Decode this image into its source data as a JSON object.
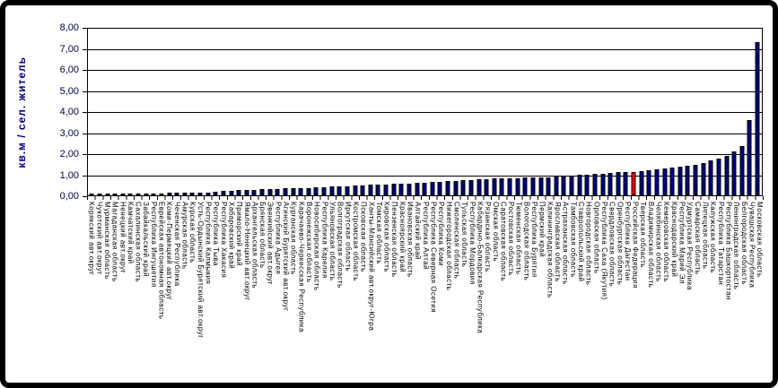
{
  "chart_data": {
    "type": "bar",
    "title": "",
    "xlabel": "",
    "ylabel": "кв.м / сел. житель",
    "ylim": [
      0,
      8
    ],
    "ytick_step": 1,
    "ytick_labels": [
      "0,00",
      "1,00",
      "2,00",
      "3,00",
      "4,00",
      "5,00",
      "6,00",
      "7,00",
      "8,00"
    ],
    "grid": true,
    "legend": null,
    "bar_color": "#000080",
    "bar_border_color": "#000000",
    "highlight_color": "#FF0000",
    "highlight_category": "Российская Федерация",
    "categories": [
      "Корякский авт.округ",
      "Чукотский авт.округ",
      "Мурманская область",
      "Магаданская область",
      "Ненецкий авт.округ",
      "Камчатский край",
      "Сахалинская область",
      "Забайкальский край",
      "Республика Ингушетия",
      "Еврейская автономная область",
      "Коми-Пермяцкий авт.округ",
      "Чеченская Республика",
      "Амурская область",
      "Курская область",
      "Усть-Ордынский Бурятский авт.округ",
      "Республика Калмыкия",
      "Республика Тыва",
      "Республика Хакасия",
      "Хабаровский край",
      "Приморский край",
      "Ямало-Ненецкий авт.округ",
      "Архангельская область",
      "Брянская область",
      "Эвенкийский авт.округ",
      "Республика Адыгея",
      "Агинский Бурятский авт.округ",
      "Курганская область",
      "Карачаево-Черкесская Республика",
      "Воронежская область",
      "Новосибирская область",
      "Республика Карелия",
      "Ульяновская область",
      "Волгоградская область",
      "Иркутская область",
      "Костромская область",
      "Псковская область",
      "Ханты-Мансийский авт.округ-Югра",
      "Томская область",
      "Кировская область",
      "Пензенская область",
      "Красноярский край",
      "Ивановская область",
      "Алтайский край",
      "Республика Алтай",
      "Республика Северная Осетия",
      "Республика Коми",
      "Нижегородская область",
      "Смоленская область",
      "Тульская область",
      "Республика Мордовия",
      "Кабардино-Балкарская Республика",
      "Рязанская область",
      "Омская область",
      "Саратовская область",
      "Ростовская область",
      "Тюменская область",
      "Вологодская область",
      "Республика Бурятия",
      "Пермский край",
      "Калининградская область",
      "Ярославская область",
      "Астраханская область",
      "Тамбовская область",
      "Ставропольский край",
      "Новгородская область",
      "Орловская область",
      "Республика Саха (Якутия)",
      "Свердловская область",
      "Оренбургская область",
      "Республика Дагестан",
      "Российская Федерация",
      "Тверская область",
      "Владимирская область",
      "Челябинская область",
      "Кемеровская область",
      "Краснодарский край",
      "Республика Марий Эл",
      "Удмуртская Республика",
      "Самарская область",
      "Липецкая область",
      "Калужская область",
      "Республика Татарстан",
      "Республика Башкортостан",
      "Ленинградская область",
      "Белгородская область",
      "Чувашская Республика",
      "Московская область"
    ],
    "values": [
      0.01,
      0.02,
      0.03,
      0.04,
      0.06,
      0.07,
      0.08,
      0.09,
      0.1,
      0.1,
      0.11,
      0.12,
      0.12,
      0.13,
      0.14,
      0.15,
      0.17,
      0.2,
      0.22,
      0.24,
      0.26,
      0.28,
      0.29,
      0.3,
      0.31,
      0.33,
      0.34,
      0.35,
      0.36,
      0.38,
      0.4,
      0.42,
      0.44,
      0.45,
      0.47,
      0.48,
      0.5,
      0.52,
      0.53,
      0.55,
      0.57,
      0.58,
      0.6,
      0.62,
      0.64,
      0.66,
      0.68,
      0.7,
      0.73,
      0.75,
      0.77,
      0.78,
      0.8,
      0.8,
      0.82,
      0.83,
      0.84,
      0.85,
      0.86,
      0.88,
      0.9,
      0.92,
      0.95,
      0.97,
      1.0,
      1.02,
      1.05,
      1.07,
      1.1,
      1.1,
      1.12,
      1.15,
      1.2,
      1.24,
      1.28,
      1.33,
      1.38,
      1.43,
      1.48,
      1.55,
      1.68,
      1.78,
      1.88,
      2.1,
      2.35,
      3.6,
      7.35
    ]
  }
}
